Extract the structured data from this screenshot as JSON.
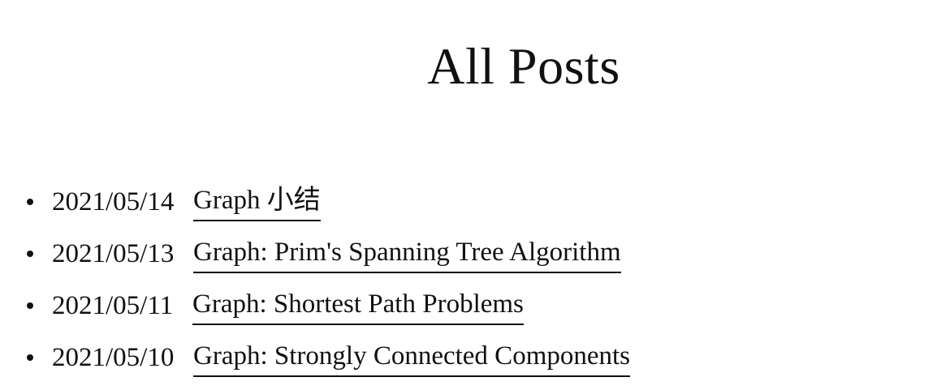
{
  "page": {
    "title": "All Posts"
  },
  "posts": [
    {
      "date": "2021/05/14",
      "title": "Graph 小结"
    },
    {
      "date": "2021/05/13",
      "title": "Graph: Prim's Spanning Tree Algorithm"
    },
    {
      "date": "2021/05/11",
      "title": "Graph: Shortest Path Problems"
    },
    {
      "date": "2021/05/10",
      "title": "Graph: Strongly Connected Components"
    }
  ]
}
